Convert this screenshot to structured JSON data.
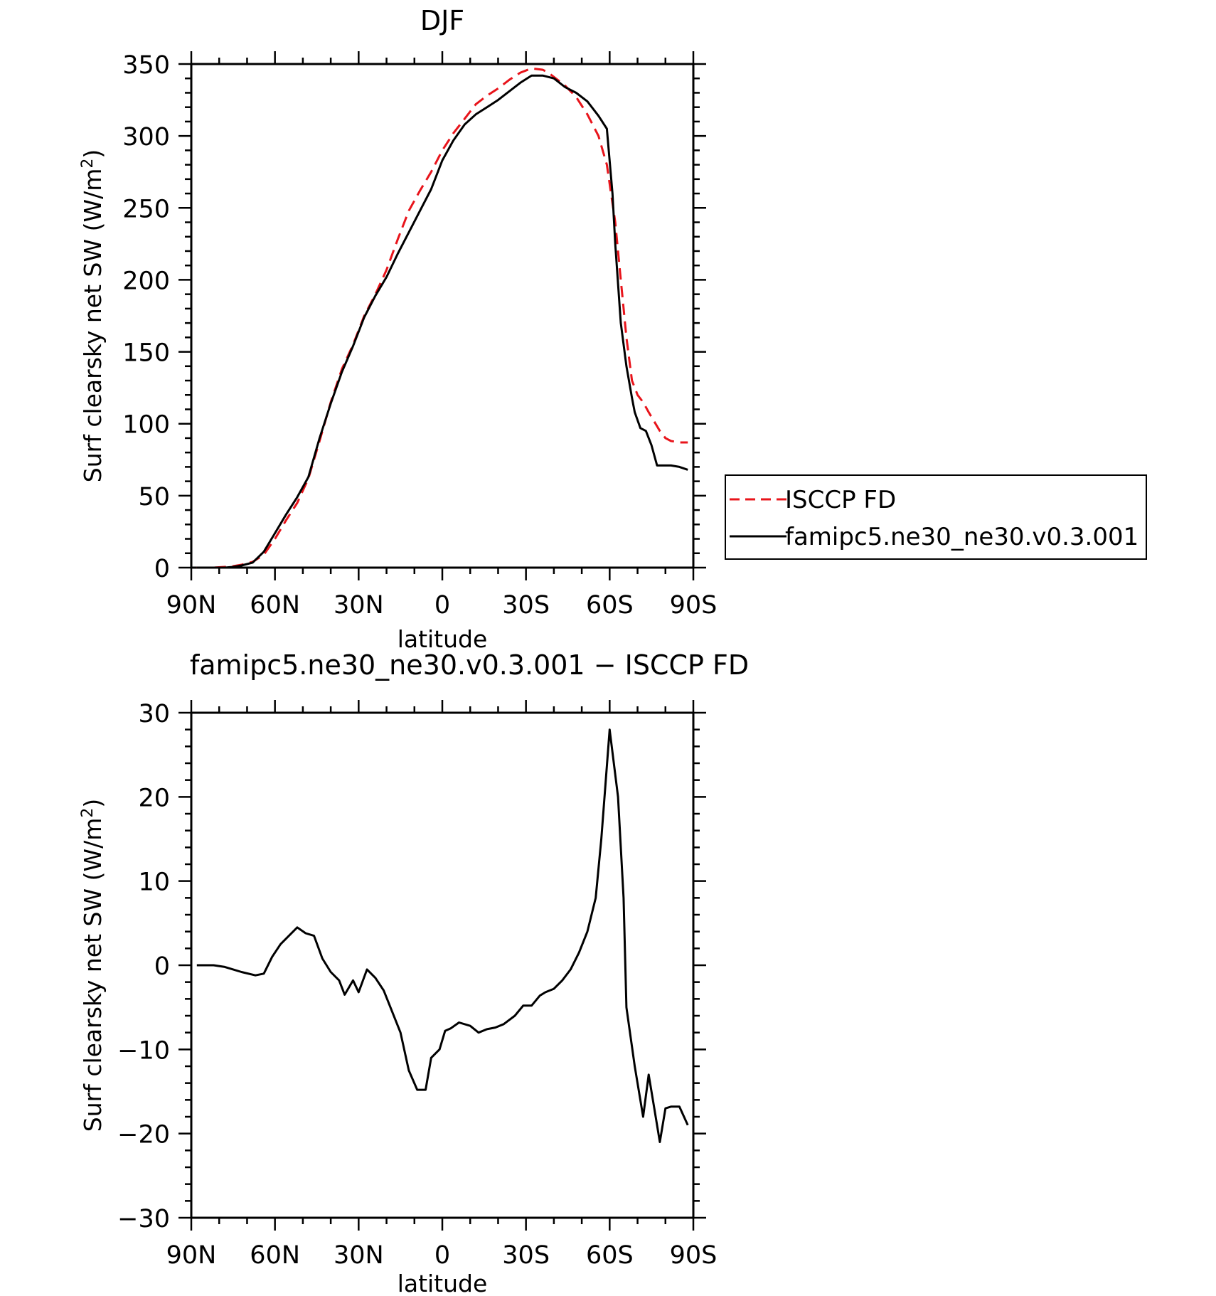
{
  "colors": {
    "isccp": "#e8141b",
    "model": "#000000",
    "axis": "#000000"
  },
  "chart_data": [
    {
      "type": "line",
      "title": "DJF",
      "xlabel": "latitude",
      "ylabel": "Surf clearsky net SW (W/m²)",
      "ylabel_main": "Surf clearsky net SW (W/m",
      "ylabel_sup": "2",
      "ylabel_end": ")",
      "xlim": [
        90,
        -90
      ],
      "ylim": [
        0,
        350
      ],
      "xticks": [
        90,
        60,
        30,
        0,
        -30,
        -60,
        -90
      ],
      "xtick_labels": [
        "90N",
        "60N",
        "30N",
        "0",
        "30S",
        "60S",
        "90S"
      ],
      "yticks": [
        0,
        50,
        100,
        150,
        200,
        250,
        300,
        350
      ],
      "ytick_labels": [
        "0",
        "50",
        "100",
        "150",
        "200",
        "250",
        "300",
        "350"
      ],
      "legend": {
        "placement": "right",
        "entries": [
          {
            "label": "ISCCP FD",
            "style": "dashed",
            "color": "#e8141b"
          },
          {
            "label": "famipc5.ne30_ne30.v0.3.001",
            "style": "solid",
            "color": "#000000"
          }
        ]
      },
      "series": [
        {
          "name": "ISCCP FD",
          "style": "dashed",
          "color": "#e8141b",
          "x": [
            88,
            85,
            82,
            78,
            75,
            72,
            68,
            64,
            60,
            56,
            52,
            48,
            44,
            40,
            36,
            32,
            28,
            24,
            20,
            16,
            12,
            8,
            4,
            0,
            -4,
            -8,
            -12,
            -16,
            -20,
            -24,
            -28,
            -32,
            -36,
            -38,
            -40,
            -44,
            -48,
            -52,
            -56,
            -59,
            -62,
            -64,
            -66,
            -68,
            -70,
            -72,
            -74,
            -78,
            -80,
            -82,
            -85,
            -88
          ],
          "y": [
            0,
            0,
            0,
            0.5,
            1,
            2,
            4,
            9,
            20,
            33,
            45,
            62,
            88,
            115,
            138,
            155,
            175,
            190,
            207,
            228,
            248,
            262,
            275,
            290,
            302,
            312,
            322,
            328,
            333,
            339,
            344,
            347,
            346,
            344,
            341,
            335,
            327,
            315,
            300,
            280,
            240,
            200,
            160,
            130,
            120,
            115,
            108,
            95,
            90,
            88,
            87,
            87
          ]
        },
        {
          "name": "famipc5.ne30_ne30.v0.3.001",
          "style": "solid",
          "color": "#000000",
          "x": [
            88,
            85,
            82,
            78,
            75,
            72,
            68,
            64,
            60,
            56,
            52,
            48,
            44,
            40,
            36,
            32,
            28,
            24,
            20,
            16,
            12,
            8,
            4,
            0,
            -4,
            -8,
            -12,
            -16,
            -20,
            -24,
            -28,
            -32,
            -36,
            -38,
            -40,
            -44,
            -48,
            -52,
            -56,
            -59,
            -61,
            -62,
            -64,
            -66,
            -68,
            -69,
            -71,
            -73,
            -75,
            -77,
            -79,
            -82,
            -85,
            -88
          ],
          "y": [
            0,
            0,
            0,
            0,
            0.5,
            1.5,
            3.5,
            11,
            24,
            37,
            49,
            63,
            90,
            114,
            136,
            154,
            174,
            189,
            202,
            218,
            233,
            248,
            263,
            283,
            297,
            308,
            315,
            320,
            325,
            331,
            337,
            342,
            342,
            341,
            340,
            334,
            330,
            324,
            314,
            305,
            260,
            225,
            170,
            140,
            118,
            108,
            97,
            95,
            85,
            71,
            71,
            71,
            70,
            68
          ]
        }
      ]
    },
    {
      "type": "line",
      "title": "famipc5.ne30_ne30.v0.3.001 − ISCCP FD",
      "xlabel": "latitude",
      "ylabel": "Surf clearsky net SW (W/m²)",
      "ylabel_main": "Surf clearsky net SW (W/m",
      "ylabel_sup": "2",
      "ylabel_end": ")",
      "xlim": [
        90,
        -90
      ],
      "ylim": [
        -30,
        30
      ],
      "xticks": [
        90,
        60,
        30,
        0,
        -30,
        -60,
        -90
      ],
      "xtick_labels": [
        "90N",
        "60N",
        "30N",
        "0",
        "30S",
        "60S",
        "90S"
      ],
      "yticks": [
        -30,
        -20,
        -10,
        0,
        10,
        20,
        30
      ],
      "ytick_labels": [
        "−30",
        "−20",
        "−10",
        "0",
        "10",
        "20",
        "30"
      ],
      "series": [
        {
          "style": "solid",
          "color": "#000000",
          "x": [
            88,
            82,
            78,
            75,
            72,
            67,
            64,
            61,
            58,
            55,
            52,
            49,
            46,
            43,
            40,
            37,
            35,
            32,
            30,
            27,
            24,
            21,
            18,
            15,
            12,
            9,
            6,
            4,
            1,
            -1,
            -3,
            -6,
            -10,
            -13,
            -16,
            -19,
            -22,
            -26,
            -29,
            -32,
            -35,
            -37,
            -40,
            -43,
            -46,
            -49,
            -52,
            -55,
            -57,
            -60,
            -63,
            -65,
            -66,
            -69,
            -72,
            -74,
            -76,
            -78,
            -80,
            -82,
            -85,
            -88
          ],
          "y": [
            0,
            0,
            -0.2,
            -0.5,
            -0.8,
            -1.2,
            -1,
            1,
            2.5,
            3.5,
            4.5,
            3.8,
            3.5,
            0.8,
            -0.8,
            -1.8,
            -3.5,
            -1.8,
            -3.2,
            -0.5,
            -1.5,
            -3,
            -5.5,
            -8,
            -12.5,
            -14.8,
            -14.8,
            -11,
            -10,
            -7.8,
            -7.5,
            -6.8,
            -7.2,
            -8,
            -7.6,
            -7.4,
            -7,
            -6,
            -4.8,
            -4.8,
            -3.6,
            -3.2,
            -2.8,
            -1.8,
            -0.5,
            1.5,
            4,
            8,
            15,
            28,
            20,
            8,
            -5,
            -12,
            -18,
            -13,
            -17,
            -21,
            -17,
            -16.8,
            -16.8,
            -19
          ]
        }
      ]
    }
  ]
}
